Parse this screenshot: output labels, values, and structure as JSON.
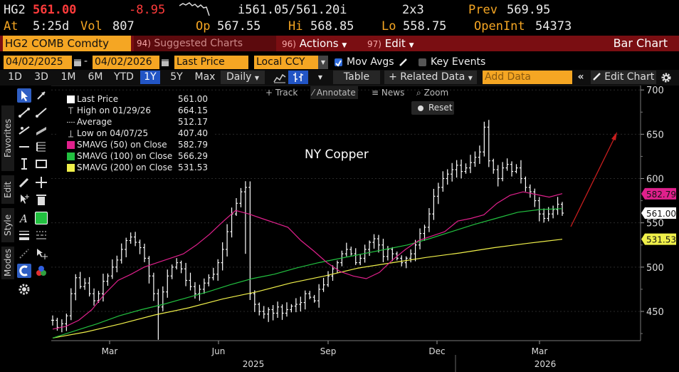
{
  "quote": {
    "ticker": "HG2",
    "last": "561.00",
    "change": "-8.95",
    "bid_ask": "i561.05/561.20i",
    "size": "2x3",
    "prev_label": "Prev",
    "prev": "569.95",
    "at_label": "At",
    "time": "5:25d",
    "vol_label": "Vol",
    "vol": "807",
    "open_label": "Op",
    "open": "567.55",
    "high_label": "Hi",
    "high": "568.85",
    "low_label": "Lo",
    "low": "558.75",
    "oi_label": "OpenInt",
    "oi": "54373"
  },
  "secbar": {
    "security": "HG2 COMB Comdty",
    "suggested_num": "94)",
    "suggested": "Suggested Charts",
    "actions_num": "96)",
    "actions": "Actions",
    "edit_num": "97)",
    "edit": "Edit",
    "title": "Bar Chart"
  },
  "params": {
    "start_date": "04/02/2025",
    "end_date": "04/02/2026",
    "field": "Last Price",
    "currency": "Local CCY",
    "mov_avgs": "Mov Avgs",
    "key_events": "Key Events"
  },
  "timeframe": {
    "buttons": [
      "1D",
      "3D",
      "1M",
      "6M",
      "YTD",
      "1Y",
      "5Y",
      "Max"
    ],
    "selected": "1Y",
    "period": "Daily",
    "table": "Table",
    "related": "Related Data",
    "add_data_placeholder": "Add Data",
    "edit_chart": "Edit Chart"
  },
  "lefttabs": {
    "favorites": "Favorites",
    "edit": "Edit",
    "style": "Style",
    "modes": "Modes"
  },
  "charttools": {
    "track": "Track",
    "annotate": "Annotate",
    "news": "News",
    "zoom": "Zoom",
    "reset": "Reset"
  },
  "legend": [
    {
      "label": "Last Price",
      "value": "561.00",
      "color": "#ffffff",
      "marker": "box"
    },
    {
      "label": "High on 01/29/26",
      "value": "664.15",
      "color": "#bbbbbb",
      "marker": "high"
    },
    {
      "label": "Average",
      "value": "512.17",
      "color": "#bbbbbb",
      "marker": "avg"
    },
    {
      "label": "Low on 04/07/25",
      "value": "407.40",
      "color": "#bbbbbb",
      "marker": "low"
    },
    {
      "label": "SMAVG (50)  on Close",
      "value": "582.79",
      "color": "#e0208c",
      "marker": "box"
    },
    {
      "label": "SMAVG (100)  on Close",
      "value": "566.29",
      "color": "#22c040",
      "marker": "box"
    },
    {
      "label": "SMAVG (200)  on Close",
      "value": "531.53",
      "color": "#f0f04a",
      "marker": "box"
    }
  ],
  "chart_data": {
    "type": "bar",
    "annotation": "NY Copper",
    "y_ticks": [
      450,
      500,
      550,
      600,
      650,
      700
    ],
    "ylim": [
      417,
      705
    ],
    "x_month_ticks": [
      "Mar",
      "Jun",
      "Sep",
      "Dec",
      "Mar"
    ],
    "x_year_labels": [
      "2025",
      "2026"
    ],
    "price_tags": [
      {
        "value": "582.79",
        "color": "#e0208c",
        "text_color": "#111111"
      },
      {
        "value": "561.00",
        "color": "#ffffff",
        "text_color": "#111111"
      },
      {
        "value": "531.53",
        "color": "#f0f04a",
        "text_color": "#111111"
      }
    ],
    "colors": {
      "price": "#ffffff",
      "sma50": "#e0208c",
      "sma100": "#22c040",
      "sma200": "#f0f04a",
      "arrow": "#c81e1e"
    },
    "closes": [
      440,
      432,
      436,
      445,
      470,
      488,
      478,
      482,
      470,
      462,
      470,
      484,
      490,
      500,
      508,
      520,
      530,
      534,
      528,
      522,
      510,
      490,
      470,
      455,
      472,
      490,
      500,
      505,
      498,
      485,
      478,
      470,
      475,
      482,
      488,
      492,
      505,
      520,
      540,
      560,
      572,
      585,
      590,
      470,
      458,
      450,
      447,
      452,
      448,
      455,
      448,
      452,
      456,
      458,
      460,
      470,
      466,
      462,
      475,
      480,
      490,
      498,
      505,
      515,
      520,
      515,
      505,
      510,
      520,
      528,
      532,
      525,
      512,
      520,
      515,
      510,
      505,
      510,
      515,
      525,
      538,
      545,
      560,
      580,
      590,
      600,
      605,
      610,
      615,
      608,
      612,
      618,
      624,
      630,
      658,
      620,
      610,
      600,
      612,
      616,
      608,
      612,
      600,
      590,
      585,
      575,
      560,
      555,
      560,
      565,
      571,
      561
    ],
    "sma50": [
      430,
      433,
      440,
      452,
      470,
      485,
      492,
      500,
      505,
      510,
      515,
      525,
      537,
      551,
      564,
      560,
      555,
      550,
      545,
      530,
      518,
      505,
      495,
      490,
      487,
      494,
      508,
      520,
      530,
      535,
      540,
      552,
      555,
      559,
      572,
      581,
      585,
      582,
      579,
      583
    ],
    "sma100": [
      420,
      428,
      436,
      445,
      452,
      458,
      465,
      472,
      480,
      487,
      492,
      499,
      505,
      510,
      515,
      520,
      525,
      532,
      540,
      548,
      555,
      562,
      565,
      566
    ],
    "sma200": [
      420,
      427,
      436,
      446,
      454,
      464,
      472,
      482,
      490,
      499,
      505,
      511,
      516,
      522,
      527,
      531.5
    ]
  }
}
